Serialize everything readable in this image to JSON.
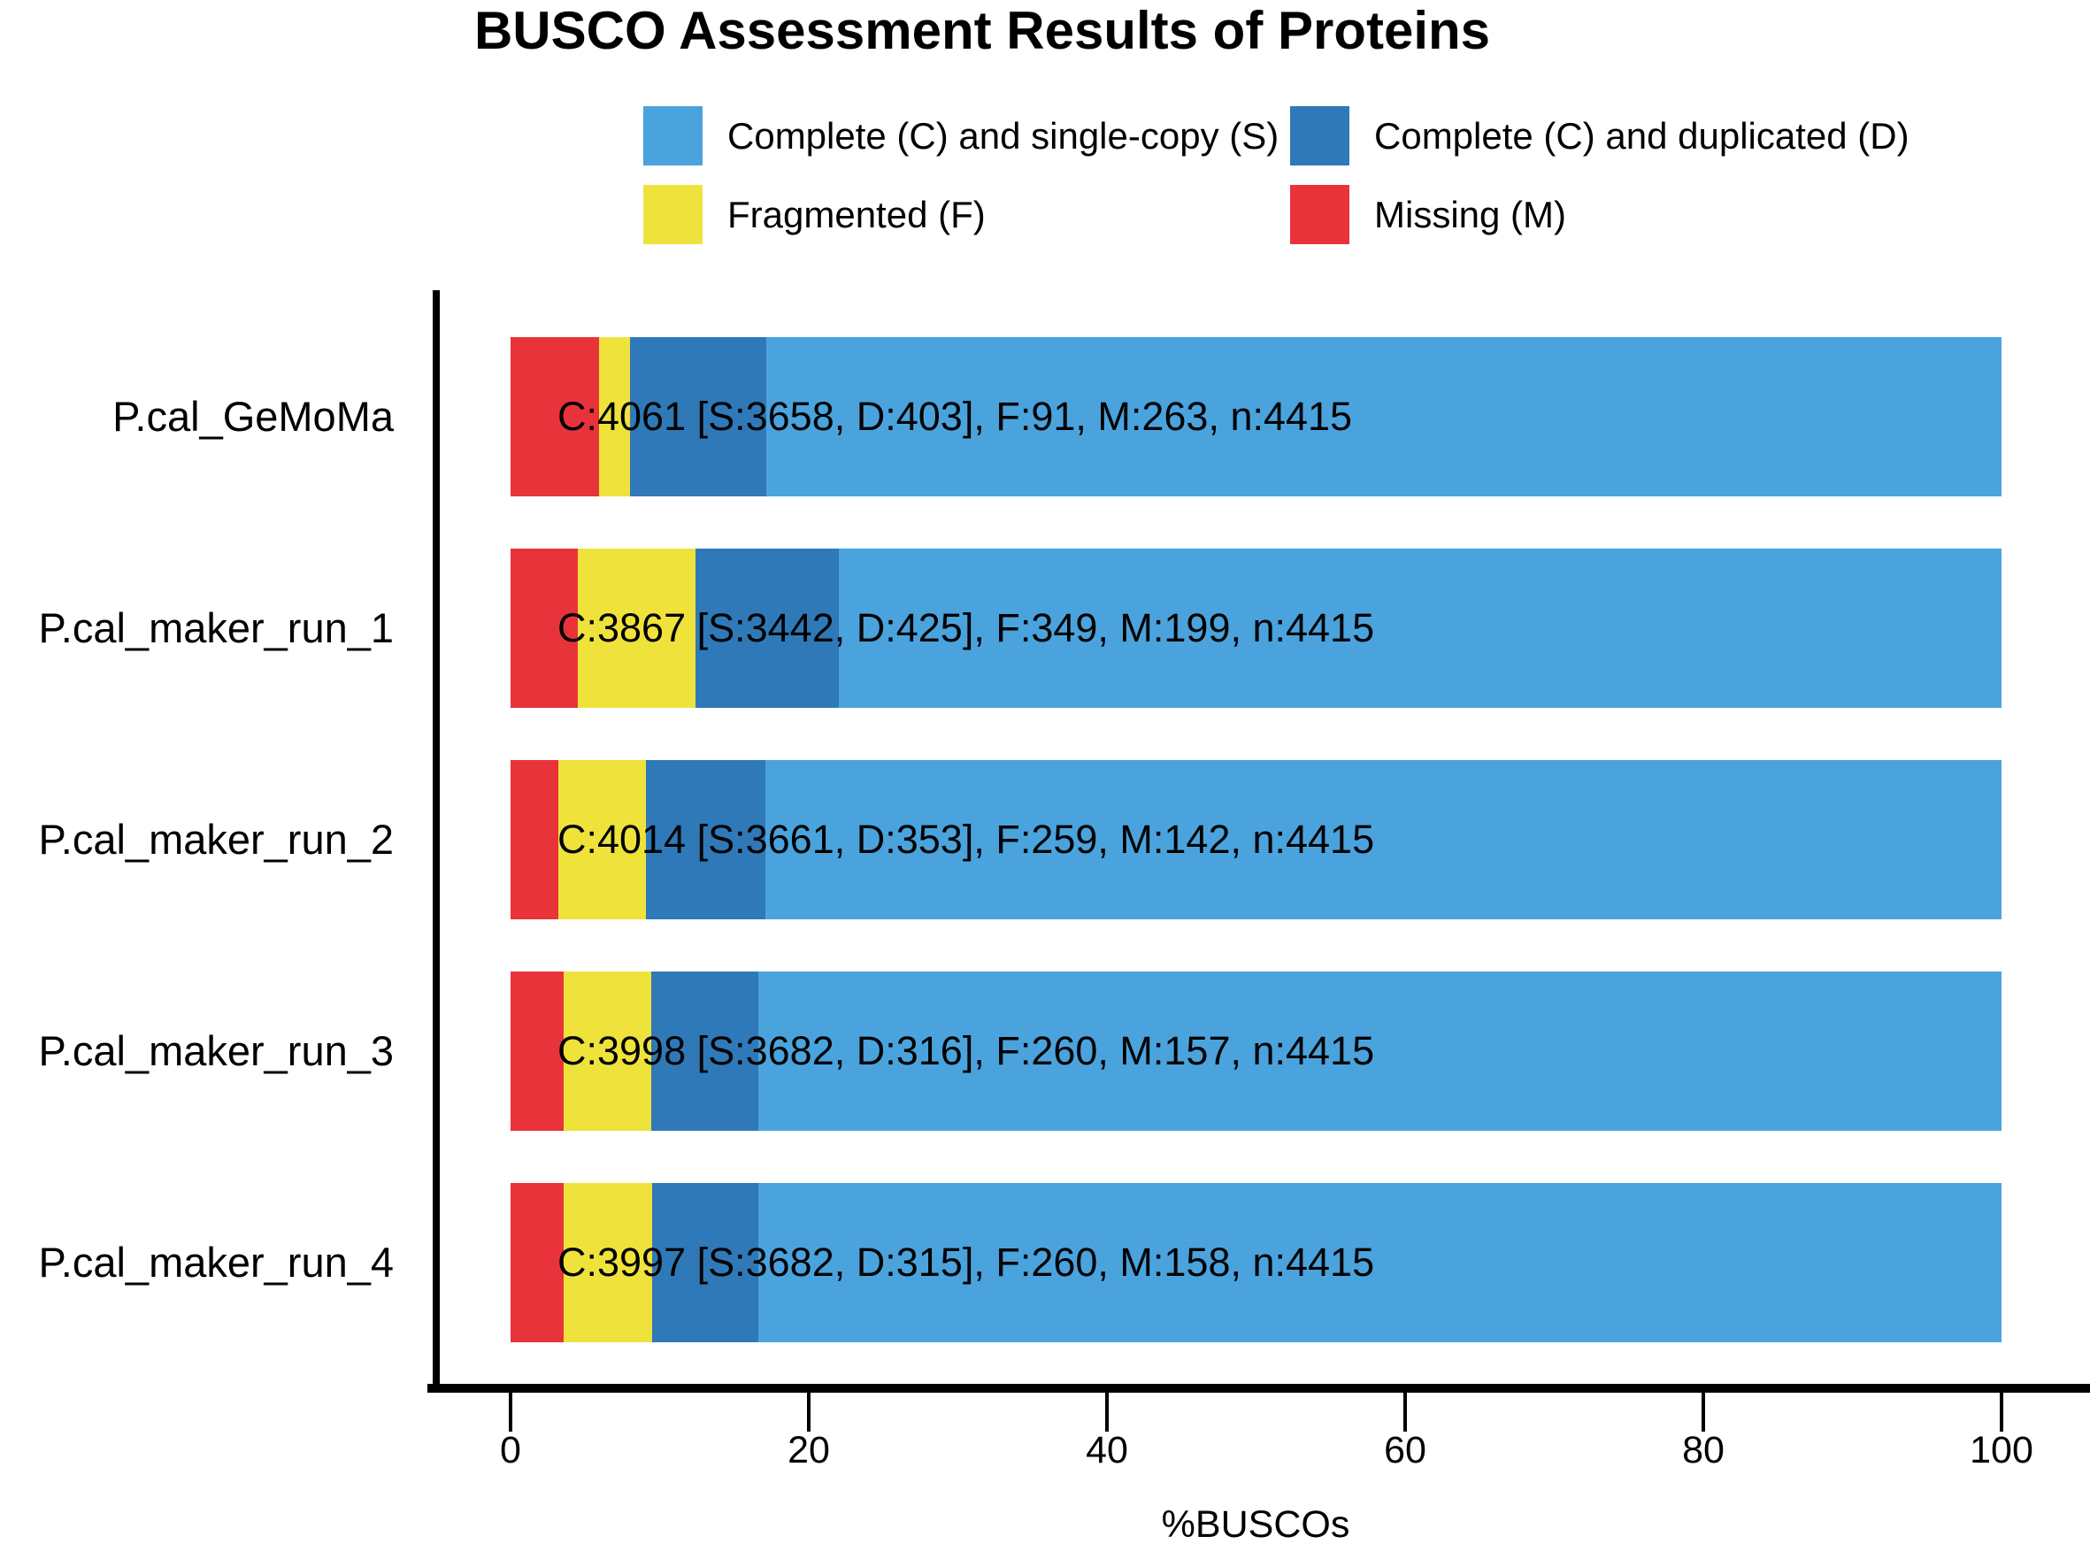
{
  "title": "BUSCO Assessment Results of Proteins",
  "colors": {
    "single": "#4AA3DD",
    "duplicated": "#2F79B8",
    "fragmented": "#EFE33B",
    "missing": "#E8333A"
  },
  "legend": {
    "items": [
      {
        "key": "single",
        "label": "Complete (C) and single-copy (S)"
      },
      {
        "key": "duplicated",
        "label": "Complete (C) and duplicated (D)"
      },
      {
        "key": "fragmented",
        "label": "Fragmented (F)"
      },
      {
        "key": "missing",
        "label": "Missing (M)"
      }
    ]
  },
  "chart_data": {
    "type": "bar",
    "orientation": "horizontal",
    "stacked": true,
    "title": "BUSCO Assessment Results of Proteins",
    "xlabel": "%BUSCOs",
    "xlim": [
      0,
      100
    ],
    "x_ticks": [
      0,
      20,
      40,
      60,
      80,
      100
    ],
    "grid": false,
    "legend_position": "top",
    "n": 4415,
    "categories": [
      "P.cal_GeMoMa",
      "P.cal_maker_run_1",
      "P.cal_maker_run_2",
      "P.cal_maker_run_3",
      "P.cal_maker_run_4"
    ],
    "stack_order": [
      "missing",
      "fragmented",
      "duplicated",
      "single"
    ],
    "series": [
      {
        "key": "missing",
        "name": "Missing (M)",
        "values": [
          263,
          199,
          142,
          157,
          158
        ]
      },
      {
        "key": "fragmented",
        "name": "Fragmented (F)",
        "values": [
          91,
          349,
          259,
          260,
          260
        ]
      },
      {
        "key": "duplicated",
        "name": "Complete (C) and duplicated (D)",
        "values": [
          403,
          425,
          353,
          316,
          315
        ]
      },
      {
        "key": "single",
        "name": "Complete (C) and single-copy (S)",
        "values": [
          3658,
          3442,
          3661,
          3682,
          3682
        ]
      }
    ],
    "bar_labels": [
      "C:4061 [S:3658, D:403], F:91, M:263, n:4415",
      "C:3867 [S:3442, D:425], F:349, M:199, n:4415",
      "C:4014 [S:3661, D:353], F:259, M:142, n:4415",
      "C:3998 [S:3682, D:316], F:260, M:157, n:4415",
      "C:3997 [S:3682, D:315], F:260, M:158, n:4415"
    ]
  }
}
